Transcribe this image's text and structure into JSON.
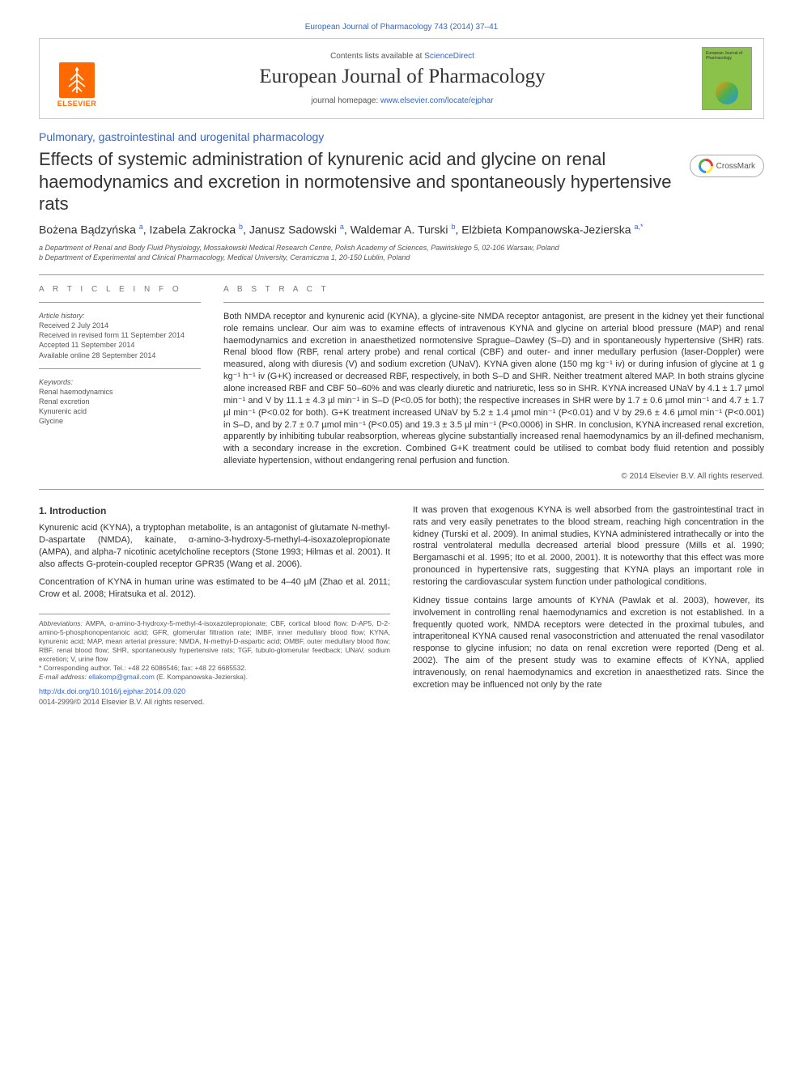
{
  "header_link": "European Journal of Pharmacology 743 (2014) 37–41",
  "masthead": {
    "contents_prefix": "Contents lists available at ",
    "contents_link": "ScienceDirect",
    "journal_title": "European Journal of Pharmacology",
    "homepage_prefix": "journal homepage: ",
    "homepage_link": "www.elsevier.com/locate/ejphar",
    "elsevier_label": "ELSEVIER",
    "cover_text": "European Journal of Pharmacology"
  },
  "section_label": "Pulmonary, gastrointestinal and urogenital pharmacology",
  "article_title": "Effects of systemic administration of kynurenic acid and glycine on renal haemodynamics and excretion in normotensive and spontaneously hypertensive rats",
  "crossmark_label": "CrossMark",
  "authors_html": "Bożena Bądzyńska <sup>a</sup>, Izabela Zakrocka <sup>b</sup>, Janusz Sadowski <sup>a</sup>, Waldemar A. Turski <sup>b</sup>, Elżbieta Kompanowska-Jezierska <sup>a,*</sup>",
  "affiliations": {
    "a": "a Department of Renal and Body Fluid Physiology, Mossakowski Medical Research Centre, Polish Academy of Sciences, Pawińskiego 5, 02-106 Warsaw, Poland",
    "b": "b Department of Experimental and Clinical Pharmacology, Medical University, Ceramiczna 1, 20-150 Lublin, Poland"
  },
  "info": {
    "heading": "A R T I C L E  I N F O",
    "history_label": "Article history:",
    "history": [
      "Received 2 July 2014",
      "Received in revised form 11 September 2014",
      "Accepted 11 September 2014",
      "Available online 28 September 2014"
    ],
    "keywords_label": "Keywords:",
    "keywords": [
      "Renal haemodynamics",
      "Renal excretion",
      "Kynurenic acid",
      "Glycine"
    ]
  },
  "abstract": {
    "heading": "A B S T R A C T",
    "text": "Both NMDA receptor and kynurenic acid (KYNA), a glycine-site NMDA receptor antagonist, are present in the kidney yet their functional role remains unclear. Our aim was to examine effects of intravenous KYNA and glycine on arterial blood pressure (MAP) and renal haemodynamics and excretion in anaesthetized normotensive Sprague–Dawley (S–D) and in spontaneously hypertensive (SHR) rats. Renal blood flow (RBF, renal artery probe) and renal cortical (CBF) and outer- and inner medullary perfusion (laser-Doppler) were measured, along with diuresis (V) and sodium excretion (UNaV). KYNA given alone (150 mg kg⁻¹ iv) or during infusion of glycine at 1 g kg⁻¹ h⁻¹ iv (G+K) increased or decreased RBF, respectively, in both S–D and SHR. Neither treatment altered MAP. In both strains glycine alone increased RBF and CBF 50–60% and was clearly diuretic and natriuretic, less so in SHR. KYNA increased UNaV by 4.1 ± 1.7 µmol min⁻¹ and V by 11.1 ± 4.3 µl min⁻¹ in S–D (P<0.05 for both); the respective increases in SHR were by 1.7 ± 0.6 µmol min⁻¹ and 4.7 ± 1.7 µl min⁻¹ (P<0.02 for both). G+K treatment increased UNaV by 5.2 ± 1.4 µmol min⁻¹ (P<0.01) and V by 29.6 ± 4.6 µmol min⁻¹ (P<0.001) in S–D, and by 2.7 ± 0.7 µmol min⁻¹ (P<0.05) and 19.3 ± 3.5 µl min⁻¹ (P<0.0006) in SHR. In conclusion, KYNA increased renal excretion, apparently by inhibiting tubular reabsorption, whereas glycine substantially increased renal haemodynamics by an ill-defined mechanism, with a secondary increase in the excretion. Combined G+K treatment could be utilised to combat body fluid retention and possibly alleviate hypertension, without endangering renal perfusion and function.",
    "copyright": "© 2014 Elsevier B.V. All rights reserved."
  },
  "body": {
    "intro_heading": "1. Introduction",
    "p1": "Kynurenic acid (KYNA), a tryptophan metabolite, is an antagonist of glutamate N-methyl-D-aspartate (NMDA), kainate, α-amino-3-hydroxy-5-methyl-4-isoxazolepropionate (AMPA), and alpha-7 nicotinic acetylcholine receptors (Stone 1993; Hilmas et al. 2001). It also affects G-protein-coupled receptor GPR35 (Wang et al. 2006).",
    "p2": "Concentration of KYNA in human urine was estimated to be 4–40 µM (Zhao et al. 2011; Crow et al. 2008; Hiratsuka et al. 2012).",
    "p3": "It was proven that exogenous KYNA is well absorbed from the gastrointestinal tract in rats and very easily penetrates to the blood stream, reaching high concentration in the kidney (Turski et al. 2009). In animal studies, KYNA administered intrathecally or into the rostral ventrolateral medulla decreased arterial blood pressure (Mills et al. 1990; Bergamaschi et al. 1995; Ito et al. 2000, 2001). It is noteworthy that this effect was more pronounced in hypertensive rats, suggesting that KYNA plays an important role in restoring the cardiovascular system function under pathological conditions.",
    "p4": "Kidney tissue contains large amounts of KYNA (Pawlak et al. 2003), however, its involvement in controlling renal haemodynamics and excretion is not established. In a frequently quoted work, NMDA receptors were detected in the proximal tubules, and intraperitoneal KYNA caused renal vasoconstriction and attenuated the renal vasodilator response to glycine infusion; no data on renal excretion were reported (Deng et al. 2002). The aim of the present study was to examine effects of KYNA, applied intravenously, on renal haemodynamics and excretion in anaesthetized rats. Since the excretion may be influenced not only by the rate"
  },
  "footnotes": {
    "abbrev_label": "Abbreviations:",
    "abbrev_text": " AMPA, α-amino-3-hydroxy-5-methyl-4-isoxazolepropionate; CBF, cortical blood flow; D-AP5, D-2-amino-5-phosphonopentanoic acid; GFR, glomerular filtration rate; IMBF, inner medullary blood flow; KYNA, kynurenic acid; MAP, mean arterial pressure; NMDA, N-methyl-D-aspartic acid; OMBF, outer medullary blood flow; RBF, renal blood flow; SHR, spontaneously hypertensive rats; TGF, tubulo-glomerular feedback; UNaV, sodium excretion; V, urine flow",
    "corr_label": "* Corresponding author. Tel.: +48 22 6086546; fax: +48 22 6685532.",
    "email_label": "E-mail address: ",
    "email": "ellakomp@gmail.com",
    "email_suffix": " (E. Kompanowska-Jezierska)."
  },
  "doi": "http://dx.doi.org/10.1016/j.ejphar.2014.09.020",
  "issn": "0014-2999/© 2014 Elsevier B.V. All rights reserved."
}
